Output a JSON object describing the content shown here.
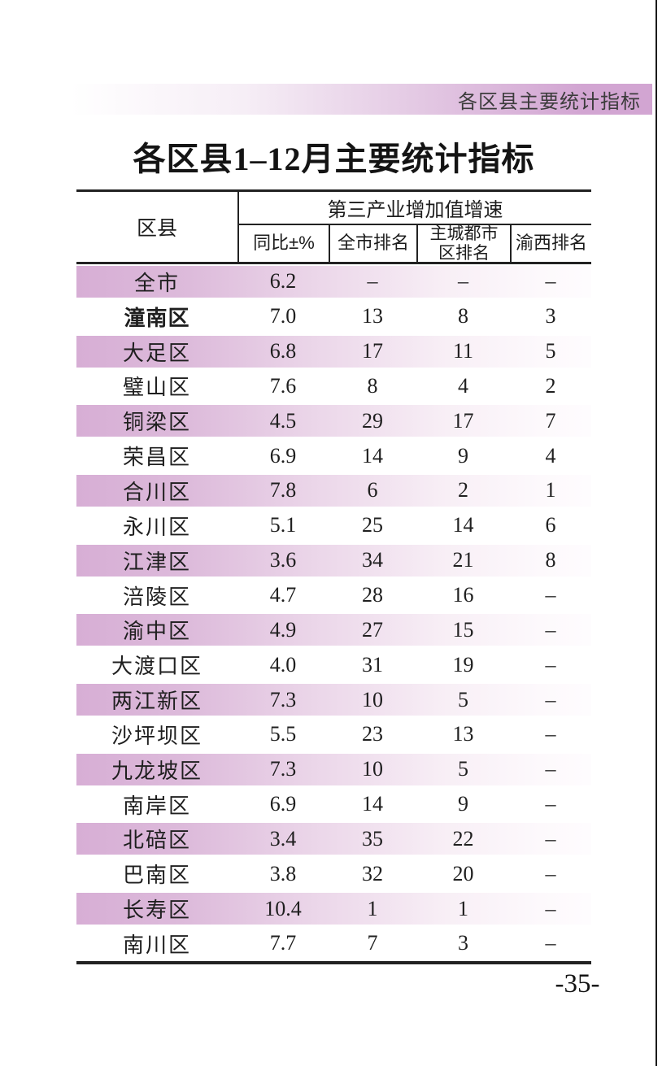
{
  "page": {
    "banner_text": "各区县主要统计指标",
    "title": "各区县1–12月主要统计指标",
    "page_number": "-35-"
  },
  "table": {
    "region_header": "区县",
    "group_header": "第三产业增加值增速",
    "sub_headers": [
      "同比±%",
      "全市排名",
      "主城都市区排名",
      "渝西排名"
    ],
    "rows": [
      {
        "name": "全市",
        "yoy": "6.2",
        "city_rank": "–",
        "metro_rank": "–",
        "yuxi_rank": "–",
        "shaded": true,
        "highlight": false
      },
      {
        "name": "潼南区",
        "yoy": "7.0",
        "city_rank": "13",
        "metro_rank": "8",
        "yuxi_rank": "3",
        "shaded": false,
        "highlight": true
      },
      {
        "name": "大足区",
        "yoy": "6.8",
        "city_rank": "17",
        "metro_rank": "11",
        "yuxi_rank": "5",
        "shaded": true,
        "highlight": false
      },
      {
        "name": "璧山区",
        "yoy": "7.6",
        "city_rank": "8",
        "metro_rank": "4",
        "yuxi_rank": "2",
        "shaded": false,
        "highlight": false
      },
      {
        "name": "铜梁区",
        "yoy": "4.5",
        "city_rank": "29",
        "metro_rank": "17",
        "yuxi_rank": "7",
        "shaded": true,
        "highlight": false
      },
      {
        "name": "荣昌区",
        "yoy": "6.9",
        "city_rank": "14",
        "metro_rank": "9",
        "yuxi_rank": "4",
        "shaded": false,
        "highlight": false
      },
      {
        "name": "合川区",
        "yoy": "7.8",
        "city_rank": "6",
        "metro_rank": "2",
        "yuxi_rank": "1",
        "shaded": true,
        "highlight": false
      },
      {
        "name": "永川区",
        "yoy": "5.1",
        "city_rank": "25",
        "metro_rank": "14",
        "yuxi_rank": "6",
        "shaded": false,
        "highlight": false
      },
      {
        "name": "江津区",
        "yoy": "3.6",
        "city_rank": "34",
        "metro_rank": "21",
        "yuxi_rank": "8",
        "shaded": true,
        "highlight": false
      },
      {
        "name": "涪陵区",
        "yoy": "4.7",
        "city_rank": "28",
        "metro_rank": "16",
        "yuxi_rank": "–",
        "shaded": false,
        "highlight": false
      },
      {
        "name": "渝中区",
        "yoy": "4.9",
        "city_rank": "27",
        "metro_rank": "15",
        "yuxi_rank": "–",
        "shaded": true,
        "highlight": false
      },
      {
        "name": "大渡口区",
        "yoy": "4.0",
        "city_rank": "31",
        "metro_rank": "19",
        "yuxi_rank": "–",
        "shaded": false,
        "highlight": false
      },
      {
        "name": "两江新区",
        "yoy": "7.3",
        "city_rank": "10",
        "metro_rank": "5",
        "yuxi_rank": "–",
        "shaded": true,
        "highlight": false
      },
      {
        "name": "沙坪坝区",
        "yoy": "5.5",
        "city_rank": "23",
        "metro_rank": "13",
        "yuxi_rank": "–",
        "shaded": false,
        "highlight": false
      },
      {
        "name": "九龙坡区",
        "yoy": "7.3",
        "city_rank": "10",
        "metro_rank": "5",
        "yuxi_rank": "–",
        "shaded": true,
        "highlight": false
      },
      {
        "name": "南岸区",
        "yoy": "6.9",
        "city_rank": "14",
        "metro_rank": "9",
        "yuxi_rank": "–",
        "shaded": false,
        "highlight": false
      },
      {
        "name": "北碚区",
        "yoy": "3.4",
        "city_rank": "35",
        "metro_rank": "22",
        "yuxi_rank": "–",
        "shaded": true,
        "highlight": false
      },
      {
        "name": "巴南区",
        "yoy": "3.8",
        "city_rank": "32",
        "metro_rank": "20",
        "yuxi_rank": "–",
        "shaded": false,
        "highlight": false
      },
      {
        "name": "长寿区",
        "yoy": "10.4",
        "city_rank": "1",
        "metro_rank": "1",
        "yuxi_rank": "–",
        "shaded": true,
        "highlight": false
      },
      {
        "name": "南川区",
        "yoy": "7.7",
        "city_rank": "7",
        "metro_rank": "3",
        "yuxi_rank": "–",
        "shaded": false,
        "highlight": false
      }
    ]
  },
  "colors": {
    "row_pink": "#d7aed5",
    "banner_pink": "#d2a5d2",
    "rule": "#222222"
  }
}
